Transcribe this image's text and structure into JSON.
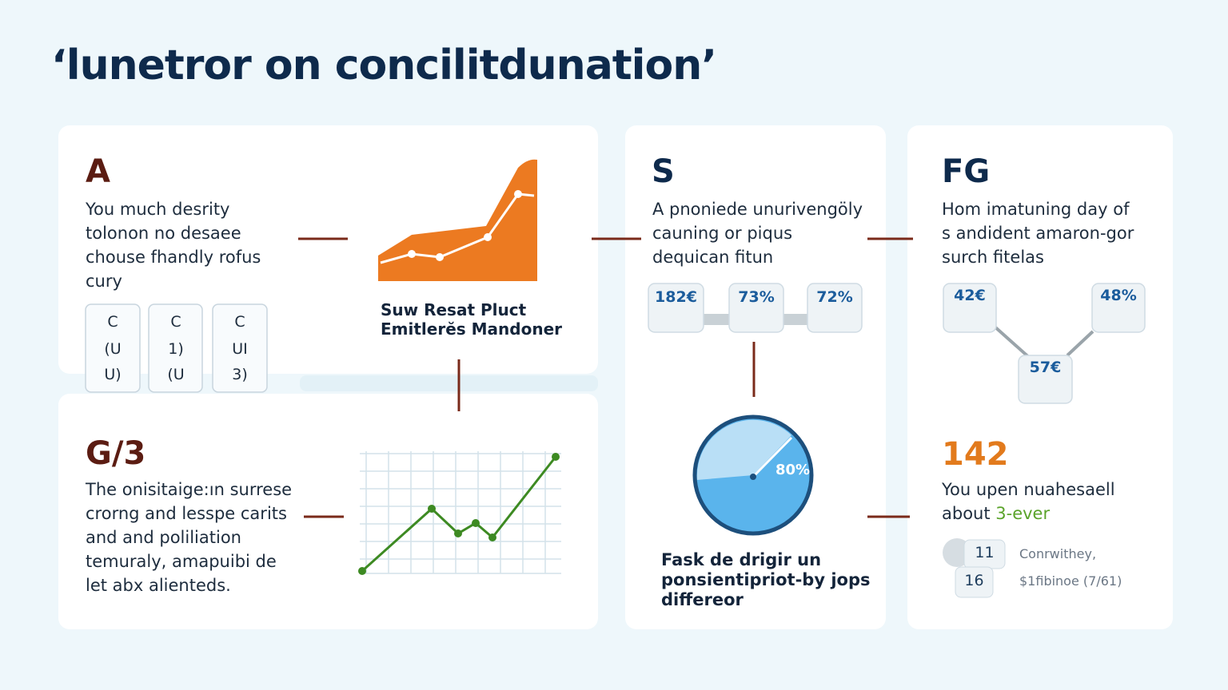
{
  "header": {
    "title": "‘lunetror on concilitdunation’"
  },
  "panel_a": {
    "heading": "A",
    "lines": [
      "You much desrity",
      "tolonon no desaee",
      "chouse fhandly rofus",
      "cury"
    ],
    "cards": [
      [
        "C",
        "(U",
        "U)"
      ],
      [
        "C",
        "1)",
        "(U"
      ],
      [
        "C",
        "UI",
        "3)"
      ]
    ],
    "caption": [
      "Suw Resat Pluct",
      "Emitlerĕs Mandoner"
    ]
  },
  "panel_g": {
    "heading": "G/3",
    "lines": [
      "The onisitaige:ın surrese",
      "crorng and lesspe carits",
      "and and poliliation",
      "temuraly, amapuibi de",
      "let abx alienteds."
    ]
  },
  "panel_s": {
    "heading": "S",
    "lines": [
      "A pnoniede unurivengöly",
      "cauning or piqus",
      "dequican fitun"
    ],
    "badges": [
      "182€",
      "73%",
      "72%"
    ],
    "gauge_label": "80%",
    "caption": [
      "Fask de drigir un",
      "ponsientipriot-by jops",
      "differeor"
    ]
  },
  "panel_fg": {
    "heading": "FG",
    "lines": [
      "Hom imatuning day of",
      "s andident amaron-gor",
      "surch fitelas"
    ],
    "badges": [
      "42€",
      "48%",
      "57€"
    ],
    "stat": "142",
    "stat_lines": [
      "You upen nuahesaell",
      "about "
    ],
    "stat_highlight": "3-ever",
    "list_numbers": [
      "11",
      "16"
    ],
    "list_texts": [
      "Conrwithey,",
      "$1fibinoe (7/61)"
    ]
  }
}
